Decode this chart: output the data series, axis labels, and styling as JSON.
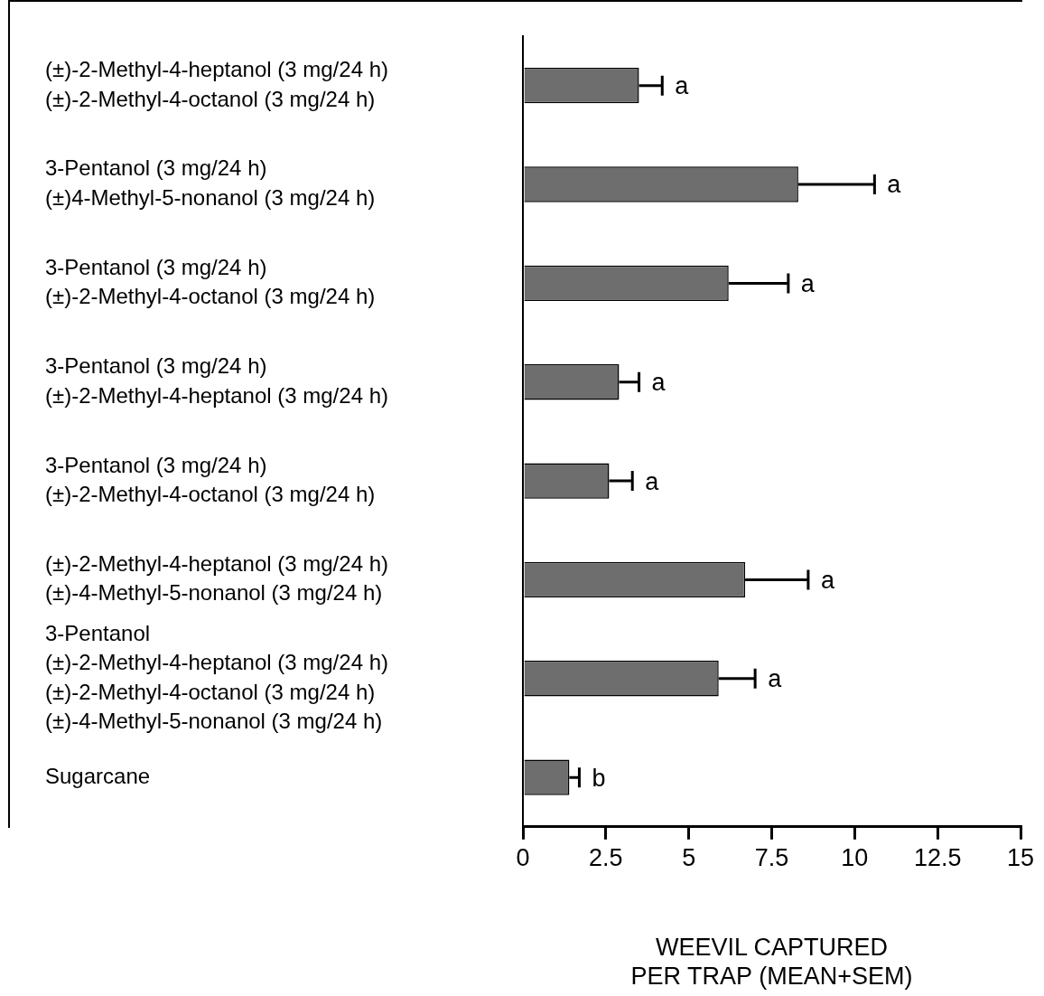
{
  "chart_data": {
    "type": "bar",
    "orientation": "horizontal",
    "categories": [
      "(±)-2-Methyl-4-heptanol (3 mg/24 h)\n(±)-2-Methyl-4-octanol (3 mg/24 h)",
      "3-Pentanol (3 mg/24 h)\n(±)4-Methyl-5-nonanol (3 mg/24 h)",
      "3-Pentanol (3 mg/24 h)\n(±)-2-Methyl-4-octanol (3 mg/24 h)",
      "3-Pentanol (3 mg/24 h)\n(±)-2-Methyl-4-heptanol (3 mg/24 h)",
      "3-Pentanol (3 mg/24 h)\n(±)-2-Methyl-4-octanol (3 mg/24 h)",
      "(±)-2-Methyl-4-heptanol (3 mg/24 h)\n(±)-4-Methyl-5-nonanol (3 mg/24 h)",
      "3-Pentanol\n(±)-2-Methyl-4-heptanol (3 mg/24 h)\n(±)-2-Methyl-4-octanol (3 mg/24 h)\n(±)-4-Methyl-5-nonanol (3 mg/24 h)",
      "Sugarcane"
    ],
    "values": [
      3.5,
      8.3,
      6.2,
      2.9,
      2.6,
      6.7,
      5.9,
      1.4
    ],
    "errors": [
      [
        3.5,
        4.2
      ],
      [
        8.3,
        10.6
      ],
      [
        6.2,
        8.0
      ],
      [
        2.9,
        3.5
      ],
      [
        2.6,
        3.3
      ],
      [
        6.7,
        8.6
      ],
      [
        5.9,
        7.0
      ],
      [
        1.4,
        1.7
      ]
    ],
    "color": "#6e6e6e",
    "xlim": [
      0,
      15
    ],
    "xticks": [
      0,
      2.5,
      5,
      7.5,
      10,
      12.5,
      15
    ],
    "xlabel": "WEEVIL CAPTURED\nPER TRAP (MEAN+SEM)",
    "annotations": [
      "a",
      "a",
      "a",
      "a",
      "a",
      "a",
      "a",
      "b"
    ],
    "grid": false,
    "legend": false
  }
}
